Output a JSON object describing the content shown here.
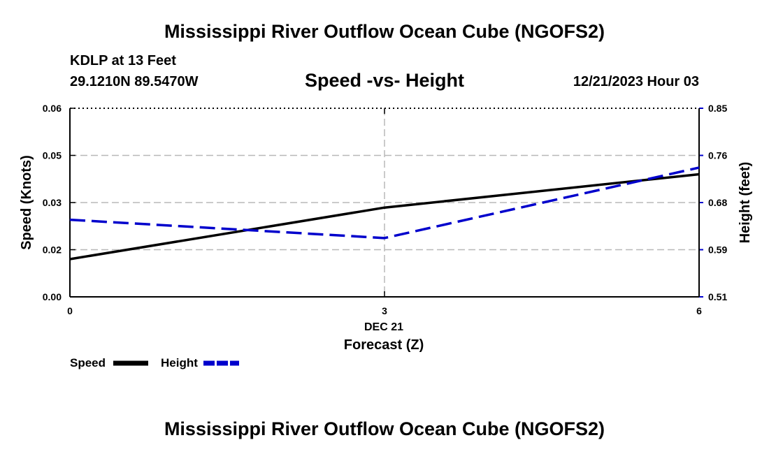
{
  "header": {
    "title": "Mississippi River Outflow Ocean Cube (NGOFS2)",
    "station": "KDLP at 13 Feet",
    "coords": "29.1210N  89.5470W",
    "subtitle": "Speed -vs- Height",
    "datetime": "12/21/2023 Hour 03"
  },
  "footer": {
    "title": "Mississippi River Outflow Ocean Cube (NGOFS2)"
  },
  "chart_data": {
    "type": "line",
    "title": "Speed -vs- Height",
    "xlabel": "Forecast (Z)",
    "x_date_label": "DEC 21",
    "x": [
      0,
      3,
      6
    ],
    "x_tick_labels": [
      "0",
      "3",
      "6"
    ],
    "xlim": [
      0,
      6
    ],
    "y_left": {
      "label": "Speed (Knots)",
      "ylim": [
        0,
        0.06
      ],
      "tick_values": [
        0,
        0.015,
        0.03,
        0.045,
        0.06
      ],
      "tick_labels": [
        "0.00",
        "0.02",
        "0.03",
        "0.05",
        "0.06"
      ]
    },
    "y_right": {
      "label": "Height (feet)",
      "ylim": [
        0.51,
        0.85
      ],
      "tick_values": [
        0.51,
        0.595,
        0.68,
        0.765,
        0.85
      ],
      "tick_labels": [
        "0.51",
        "0.59",
        "0.68",
        "0.76",
        "0.85"
      ]
    },
    "grid": true,
    "legend_position": "bottom-left",
    "series": [
      {
        "name": "Speed",
        "axis": "left",
        "values": [
          0.012,
          0.0284,
          0.039
        ],
        "color": "#000000",
        "style": "solid"
      },
      {
        "name": "Height",
        "axis": "right",
        "values": [
          0.649,
          0.616,
          0.743
        ],
        "color": "#0000cc",
        "style": "dashed"
      }
    ]
  }
}
